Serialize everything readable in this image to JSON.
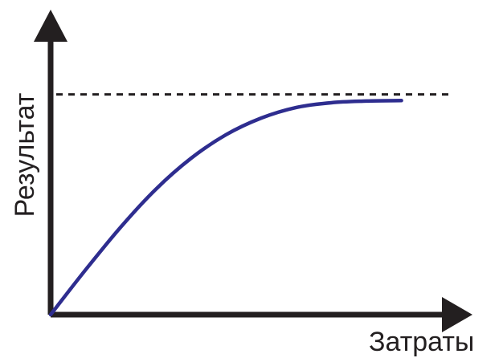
{
  "chart_data": {
    "type": "line",
    "title": "",
    "xlabel": "Затраты",
    "ylabel": "Результат",
    "xlim": [
      0,
      10
    ],
    "ylim": [
      0,
      10
    ],
    "series": [
      {
        "x": [
          0,
          1,
          2,
          3,
          4,
          5,
          6,
          7,
          8,
          9,
          10
        ],
        "y": [
          0.0,
          1.9,
          3.7,
          5.3,
          6.6,
          7.6,
          8.3,
          8.75,
          8.95,
          9.02,
          9.04
        ]
      }
    ],
    "asymptote": {
      "y": 9.3,
      "style": "dashed"
    },
    "colors": {
      "axis": "#231f20",
      "line": "#2e2d8f",
      "asymptote": "#231f20"
    }
  }
}
